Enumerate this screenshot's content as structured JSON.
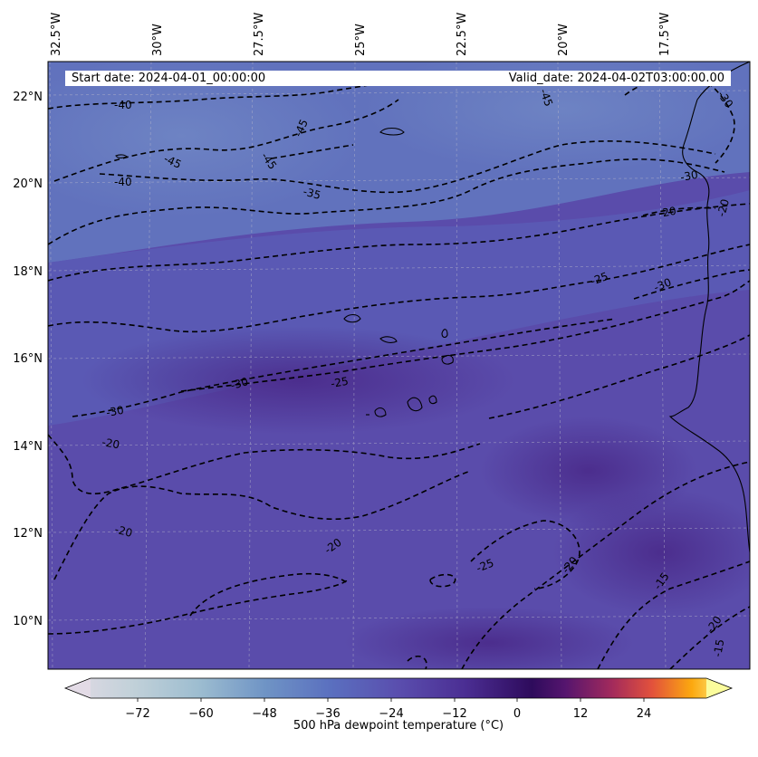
{
  "map": {
    "start_date": "Start date: 2024-04-01_00:00:00",
    "valid_date": "Valid_date: 2024-04-02T03:00:00.00",
    "longitude_labels": [
      "32.5°W",
      "30°W",
      "27.5°W",
      "25°W",
      "22.5°W",
      "20°W",
      "17.5°W"
    ],
    "latitude_labels": [
      "22°N",
      "20°N",
      "18°N",
      "16°N",
      "14°N",
      "12°N",
      "10°N"
    ],
    "contour_labels": [
      "-40",
      "-45",
      "-45",
      "-45",
      "-40",
      "-35",
      "-30",
      "-20",
      "-20",
      "-25",
      "-30",
      "-30",
      "-25",
      "-30",
      "-20",
      "-20",
      "-20",
      "-25",
      "-20",
      "-15",
      "-20",
      "-15",
      "-30",
      "-45"
    ]
  },
  "colorbar": {
    "label": "500 hPa dewpoint temperature ($^\\circ$C)",
    "label_display": "500 hPa dewpoint temperature (°C)",
    "ticks": [
      "−72",
      "−60",
      "−48",
      "−36",
      "−24",
      "−12",
      "0",
      "12",
      "24"
    ],
    "min": -84,
    "max": 36
  }
}
